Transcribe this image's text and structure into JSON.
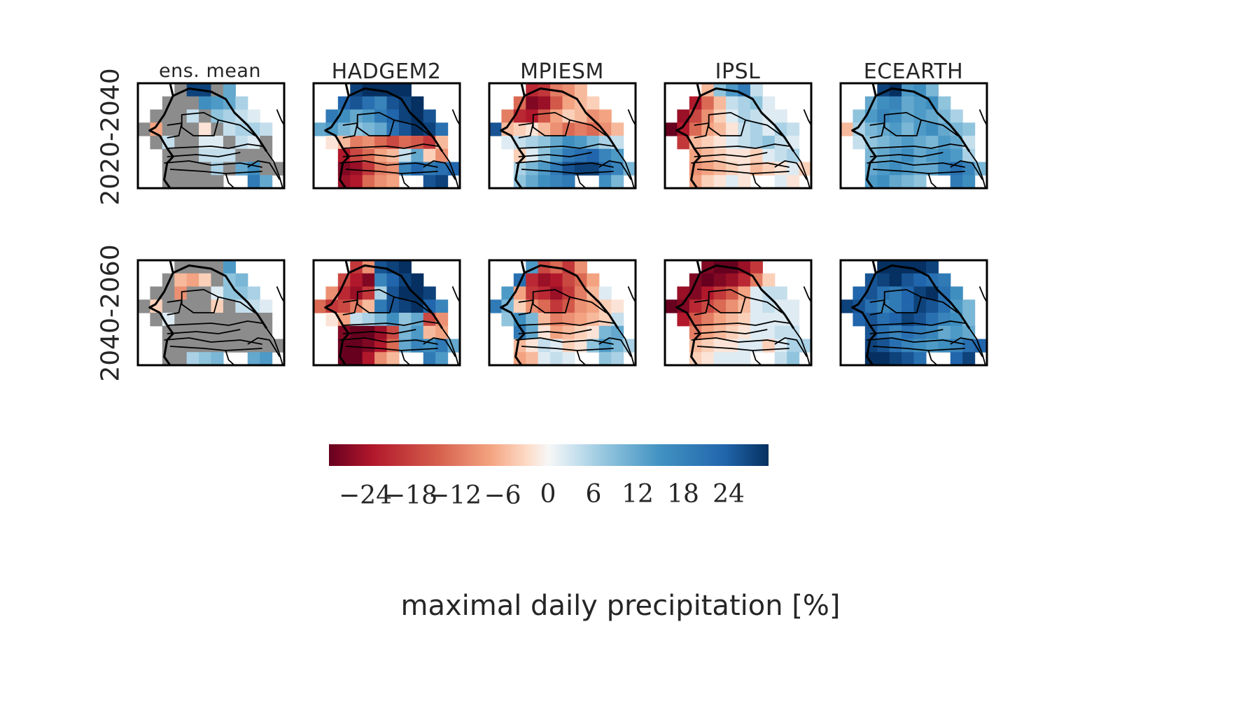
{
  "chart_data": {
    "type": "heatmap",
    "models": [
      "ens.  mean",
      "HADGEM2",
      "MPIESM",
      "IPSL",
      "ECEARTH"
    ],
    "periods": [
      "2020-2040",
      "2040-2060"
    ],
    "grid": {
      "rows": 8,
      "cols": 12
    },
    "colorbar": {
      "label": "maximal daily precipitation [%]",
      "vmin": -30,
      "vmax": 30,
      "ticks": [
        "−24",
        "−18",
        "−12",
        "−6",
        "0",
        "6",
        "12",
        "18",
        "24"
      ],
      "tick_values": [
        -24,
        -18,
        -12,
        -6,
        0,
        6,
        12,
        18,
        24
      ],
      "colormap": "RdBu"
    },
    "panels": [
      {
        "model": "ens.  mean",
        "period": "2020-2040",
        "values": [
          [
            null,
            null,
            null,
            "G",
            28,
            28,
            "G",
            12,
            null,
            null,
            null,
            null
          ],
          [
            null,
            null,
            "G",
            "G",
            "G",
            16,
            14,
            12,
            6,
            null,
            null,
            null
          ],
          [
            null,
            "G",
            "G",
            "G",
            4,
            "G",
            8,
            6,
            4,
            2,
            null,
            null
          ],
          [
            "G",
            -8,
            "G",
            "G",
            "G",
            -2,
            "G",
            4,
            6,
            6,
            4,
            null
          ],
          [
            null,
            "G",
            4,
            "G",
            "G",
            2,
            2,
            "G",
            4,
            2,
            "G",
            null
          ],
          [
            null,
            null,
            "G",
            "G",
            "G",
            4,
            4,
            4,
            "G",
            "G",
            "G",
            null
          ],
          [
            null,
            null,
            "G",
            "G",
            "G",
            "G",
            6,
            "G",
            12,
            16,
            "G",
            "G"
          ],
          [
            null,
            null,
            "G",
            "G",
            "G",
            "G",
            "G",
            null,
            null,
            20,
            12,
            null
          ]
        ]
      },
      {
        "model": "ens.  mean",
        "period": "2040-2060",
        "values": [
          [
            null,
            null,
            null,
            "G",
            "G",
            "G",
            "G",
            14,
            null,
            null,
            null,
            null
          ],
          [
            null,
            null,
            "G",
            -6,
            -8,
            -4,
            "G",
            8,
            10,
            null,
            null,
            null
          ],
          [
            null,
            "G",
            "G",
            -10,
            "G",
            "G",
            2,
            8,
            8,
            6,
            null,
            null
          ],
          [
            "G",
            -4,
            "G",
            "G",
            "G",
            "G",
            -4,
            "G",
            4,
            4,
            2,
            null
          ],
          [
            null,
            "G",
            2,
            "G",
            "G",
            "G",
            "G",
            "G",
            "G",
            "G",
            "G",
            null
          ],
          [
            null,
            null,
            "G",
            "G",
            "G",
            "G",
            "G",
            "G",
            "G",
            "G",
            "G",
            null
          ],
          [
            null,
            null,
            "G",
            "G",
            "G",
            "G",
            "G",
            "G",
            "G",
            "G",
            "G",
            "G"
          ],
          [
            null,
            null,
            "G",
            "G",
            6,
            8,
            10,
            null,
            null,
            12,
            14,
            null
          ]
        ]
      },
      {
        "model": "HADGEM2",
        "period": "2020-2040",
        "values": [
          [
            null,
            null,
            null,
            28,
            30,
            30,
            30,
            30,
            null,
            null,
            null,
            null
          ],
          [
            null,
            null,
            24,
            26,
            22,
            18,
            26,
            28,
            30,
            null,
            null,
            null
          ],
          [
            null,
            20,
            16,
            12,
            14,
            20,
            24,
            28,
            30,
            26,
            null,
            null
          ],
          [
            12,
            14,
            10,
            8,
            10,
            12,
            22,
            26,
            30,
            28,
            22,
            null
          ],
          [
            null,
            -2,
            -6,
            -12,
            -10,
            -14,
            -18,
            -14,
            -16,
            -20,
            -6,
            null
          ],
          [
            null,
            null,
            -24,
            -18,
            -14,
            -8,
            -6,
            4,
            12,
            -4,
            -10,
            null
          ],
          [
            null,
            null,
            -28,
            -26,
            -20,
            -12,
            -10,
            18,
            24,
            20,
            22,
            24
          ],
          [
            null,
            null,
            -26,
            -24,
            -14,
            -10,
            -8,
            null,
            null,
            26,
            28,
            null
          ]
        ]
      },
      {
        "model": "HADGEM2",
        "period": "2040-2060",
        "values": [
          [
            null,
            null,
            null,
            -20,
            -10,
            26,
            28,
            30,
            null,
            null,
            null,
            null
          ],
          [
            null,
            null,
            -18,
            -24,
            -28,
            18,
            24,
            28,
            30,
            null,
            null,
            null
          ],
          [
            null,
            -10,
            -22,
            -26,
            -20,
            6,
            26,
            30,
            30,
            28,
            null,
            null
          ],
          [
            -14,
            -20,
            -18,
            -12,
            -6,
            20,
            26,
            28,
            30,
            24,
            18,
            null
          ],
          [
            null,
            -2,
            -8,
            4,
            6,
            10,
            16,
            8,
            12,
            -18,
            -10,
            null
          ],
          [
            null,
            null,
            -28,
            -30,
            -30,
            -26,
            -18,
            10,
            14,
            -6,
            -8,
            null
          ],
          [
            null,
            null,
            -30,
            -30,
            -28,
            -24,
            -14,
            12,
            18,
            16,
            20,
            12
          ],
          [
            null,
            null,
            -30,
            -30,
            -24,
            -10,
            -6,
            null,
            null,
            20,
            14,
            null
          ]
        ]
      },
      {
        "model": "MPIESM",
        "period": "2020-2040",
        "values": [
          [
            null,
            null,
            null,
            -22,
            -20,
            -12,
            -10,
            -6,
            null,
            null,
            null,
            null
          ],
          [
            null,
            null,
            -14,
            -28,
            -26,
            -16,
            -8,
            -6,
            -4,
            null,
            null,
            null
          ],
          [
            null,
            -12,
            -22,
            -24,
            -16,
            -8,
            -4,
            -6,
            -10,
            -8,
            null,
            null
          ],
          [
            26,
            -6,
            -4,
            -2,
            -6,
            -10,
            -14,
            -12,
            -14,
            -10,
            -6,
            null
          ],
          [
            null,
            2,
            4,
            6,
            8,
            12,
            16,
            14,
            10,
            6,
            4,
            null
          ],
          [
            null,
            null,
            -4,
            2,
            8,
            14,
            20,
            22,
            24,
            18,
            14,
            null
          ],
          [
            null,
            null,
            6,
            10,
            14,
            20,
            26,
            28,
            28,
            22,
            18,
            10
          ],
          [
            null,
            null,
            8,
            12,
            16,
            18,
            20,
            null,
            null,
            16,
            10,
            null
          ]
        ]
      },
      {
        "model": "MPIESM",
        "period": "2040-2060",
        "values": [
          [
            null,
            null,
            null,
            14,
            -18,
            -14,
            -20,
            -10,
            null,
            null,
            null,
            null
          ],
          [
            null,
            null,
            22,
            -22,
            -26,
            -24,
            -18,
            -14,
            -8,
            null,
            null,
            null
          ],
          [
            null,
            14,
            -8,
            -20,
            -22,
            -26,
            -20,
            -12,
            -6,
            2,
            null,
            null
          ],
          [
            20,
            10,
            -4,
            -10,
            -14,
            -20,
            -16,
            -10,
            -8,
            -4,
            -2,
            null
          ],
          [
            null,
            8,
            16,
            10,
            -6,
            -12,
            -10,
            -8,
            -6,
            -4,
            4,
            null
          ],
          [
            null,
            null,
            20,
            12,
            -2,
            -8,
            -6,
            -4,
            -2,
            10,
            12,
            null
          ],
          [
            null,
            null,
            -6,
            -2,
            4,
            2,
            -4,
            -2,
            8,
            14,
            10,
            6
          ],
          [
            null,
            null,
            -8,
            -6,
            2,
            4,
            2,
            null,
            null,
            8,
            6,
            null
          ]
        ]
      },
      {
        "model": "IPSL",
        "period": "2020-2040",
        "values": [
          [
            null,
            null,
            null,
            -6,
            8,
            14,
            20,
            4,
            null,
            null,
            null,
            null
          ],
          [
            null,
            null,
            -24,
            -14,
            -6,
            4,
            6,
            8,
            2,
            null,
            null,
            null
          ],
          [
            null,
            -26,
            -18,
            -10,
            -4,
            2,
            6,
            4,
            2,
            2,
            null,
            null
          ],
          [
            -30,
            -24,
            -14,
            -8,
            -6,
            -2,
            4,
            6,
            2,
            6,
            4,
            null
          ],
          [
            null,
            -20,
            -6,
            -4,
            -2,
            2,
            4,
            6,
            8,
            4,
            2,
            null
          ],
          [
            null,
            null,
            -8,
            -6,
            -4,
            -2,
            -2,
            -4,
            2,
            4,
            6,
            null
          ],
          [
            null,
            null,
            -10,
            -8,
            -6,
            -4,
            -2,
            -6,
            -4,
            -2,
            2,
            -4
          ],
          [
            null,
            null,
            -8,
            -4,
            -2,
            2,
            -2,
            null,
            null,
            2,
            -2,
            null
          ]
        ]
      },
      {
        "model": "IPSL",
        "period": "2040-2060",
        "values": [
          [
            null,
            null,
            null,
            -28,
            -30,
            -30,
            -26,
            -20,
            null,
            null,
            null,
            null
          ],
          [
            null,
            null,
            -28,
            -30,
            -28,
            -26,
            -22,
            -12,
            -4,
            null,
            null,
            null
          ],
          [
            null,
            -26,
            -28,
            -24,
            -20,
            -16,
            -8,
            2,
            4,
            4,
            null,
            null
          ],
          [
            -30,
            -28,
            -22,
            -18,
            -14,
            -10,
            -6,
            2,
            4,
            2,
            2,
            null
          ],
          [
            null,
            -24,
            -16,
            -12,
            -8,
            -6,
            -4,
            2,
            2,
            2,
            2,
            null
          ],
          [
            null,
            null,
            -12,
            -8,
            -6,
            -4,
            -2,
            2,
            2,
            4,
            4,
            null
          ],
          [
            null,
            null,
            -6,
            -4,
            -2,
            -2,
            2,
            2,
            -4,
            2,
            6,
            6
          ],
          [
            null,
            null,
            -4,
            -2,
            2,
            2,
            2,
            null,
            null,
            4,
            8,
            null
          ]
        ]
      },
      {
        "model": "ECEARTH",
        "period": "2020-2040",
        "values": [
          [
            null,
            null,
            null,
            28,
            30,
            14,
            16,
            10,
            null,
            null,
            null,
            null
          ],
          [
            null,
            null,
            12,
            16,
            18,
            12,
            14,
            16,
            8,
            null,
            null,
            null
          ],
          [
            null,
            8,
            14,
            18,
            16,
            12,
            14,
            12,
            10,
            6,
            null,
            null
          ],
          [
            -6,
            6,
            10,
            12,
            14,
            10,
            14,
            16,
            12,
            10,
            8,
            null
          ],
          [
            null,
            4,
            8,
            10,
            12,
            14,
            12,
            10,
            14,
            12,
            4,
            null
          ],
          [
            null,
            null,
            10,
            12,
            14,
            16,
            12,
            14,
            16,
            14,
            6,
            null
          ],
          [
            null,
            null,
            12,
            14,
            16,
            14,
            12,
            12,
            18,
            22,
            18,
            10
          ],
          [
            null,
            null,
            14,
            16,
            12,
            10,
            8,
            null,
            null,
            20,
            16,
            null
          ]
        ]
      },
      {
        "model": "ECEARTH",
        "period": "2040-2060",
        "values": [
          [
            null,
            null,
            null,
            30,
            30,
            30,
            30,
            28,
            null,
            null,
            null,
            null
          ],
          [
            null,
            null,
            26,
            28,
            30,
            26,
            24,
            22,
            20,
            null,
            null,
            null
          ],
          [
            null,
            24,
            26,
            22,
            20,
            24,
            28,
            30,
            22,
            16,
            null,
            null
          ],
          [
            28,
            26,
            22,
            18,
            20,
            24,
            28,
            26,
            22,
            14,
            10,
            null
          ],
          [
            null,
            24,
            26,
            22,
            24,
            28,
            26,
            22,
            18,
            16,
            10,
            null
          ],
          [
            null,
            null,
            26,
            22,
            18,
            22,
            20,
            18,
            12,
            14,
            12,
            null
          ],
          [
            null,
            null,
            28,
            26,
            22,
            18,
            16,
            14,
            16,
            18,
            22,
            24
          ],
          [
            null,
            null,
            30,
            30,
            28,
            26,
            22,
            null,
            null,
            24,
            28,
            null
          ]
        ]
      }
    ]
  }
}
